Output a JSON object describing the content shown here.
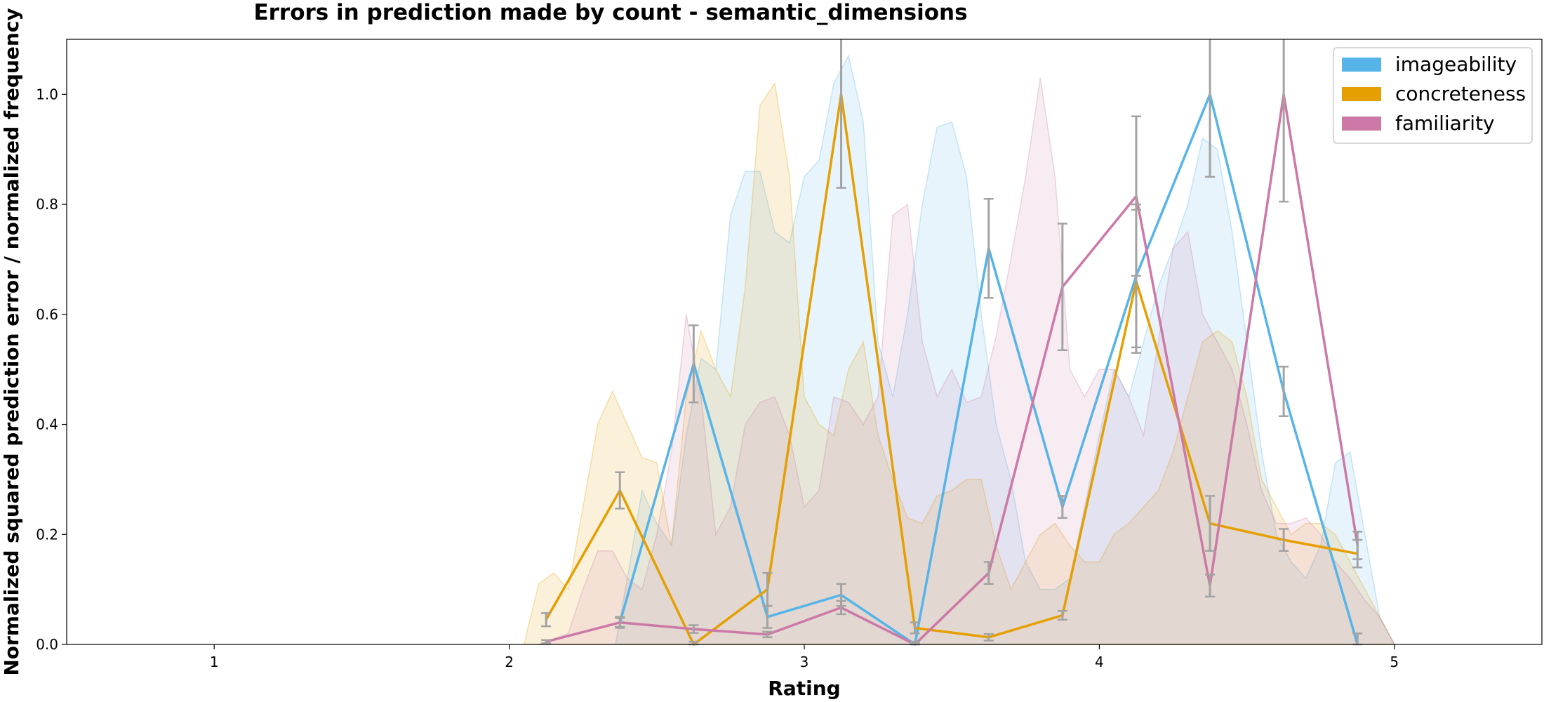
{
  "chart_data": {
    "type": "line",
    "title": "Errors in prediction made by count - semantic_dimensions",
    "xlabel": "Rating",
    "ylabel": "Normalized squared prediction error / normalized frequency",
    "xlim": [
      0.5,
      5.5
    ],
    "ylim": [
      0,
      1.1
    ],
    "xticks": [
      "1",
      "2",
      "3",
      "4",
      "5"
    ],
    "xtick_values": [
      1,
      2,
      3,
      4,
      5
    ],
    "yticks": [
      "0.0",
      "0.2",
      "0.4",
      "0.6",
      "0.8",
      "1.0"
    ],
    "ytick_values": [
      0,
      0.2,
      0.4,
      0.6,
      0.8,
      1.0
    ],
    "grid": false,
    "legend_position": "top-right",
    "series": [
      {
        "name": "imageability",
        "color": "#56B4E9",
        "line": {
          "x": [
            2.375,
            2.625,
            2.875,
            3.125,
            3.375,
            3.625,
            3.875,
            4.125,
            4.375,
            4.625,
            4.875
          ],
          "y": [
            0.04,
            0.51,
            0.05,
            0.09,
            0.0,
            0.72,
            0.25,
            0.67,
            1.0,
            0.46,
            0.0
          ],
          "err": [
            0.01,
            0.07,
            0.02,
            0.02,
            0.005,
            0.09,
            0.02,
            0.13,
            0.15,
            0.045,
            0.02
          ]
        },
        "distribution": {
          "x": [
            2.36,
            2.4,
            2.45,
            2.5,
            2.55,
            2.6,
            2.65,
            2.7,
            2.75,
            2.8,
            2.85,
            2.9,
            2.95,
            3.0,
            3.05,
            3.1,
            3.15,
            3.2,
            3.25,
            3.3,
            3.35,
            3.4,
            3.45,
            3.5,
            3.55,
            3.6,
            3.65,
            3.7,
            3.75,
            3.8,
            3.85,
            3.9,
            3.95,
            4.0,
            4.05,
            4.1,
            4.15,
            4.2,
            4.25,
            4.3,
            4.35,
            4.4,
            4.45,
            4.5,
            4.55,
            4.6,
            4.65,
            4.7,
            4.75,
            4.8,
            4.85,
            4.9,
            4.95,
            5.0
          ],
          "y": [
            0.0,
            0.12,
            0.28,
            0.22,
            0.18,
            0.38,
            0.52,
            0.5,
            0.78,
            0.86,
            0.86,
            0.75,
            0.73,
            0.85,
            0.88,
            1.02,
            1.07,
            0.95,
            0.55,
            0.45,
            0.6,
            0.8,
            0.94,
            0.95,
            0.85,
            0.6,
            0.4,
            0.3,
            0.15,
            0.1,
            0.1,
            0.12,
            0.25,
            0.38,
            0.5,
            0.45,
            0.55,
            0.65,
            0.72,
            0.8,
            0.92,
            0.9,
            0.75,
            0.55,
            0.35,
            0.2,
            0.15,
            0.12,
            0.18,
            0.33,
            0.35,
            0.2,
            0.05,
            0.0
          ]
        }
      },
      {
        "name": "concreteness",
        "color": "#E69F00",
        "line": {
          "x": [
            2.125,
            2.375,
            2.625,
            2.875,
            3.125,
            3.375,
            3.625,
            3.875,
            4.125,
            4.375,
            4.625,
            4.875
          ],
          "y": [
            0.045,
            0.28,
            0.0,
            0.1,
            1.0,
            0.03,
            0.013,
            0.053,
            0.66,
            0.22,
            0.19,
            0.165
          ],
          "err": [
            0.012,
            0.033,
            0.005,
            0.03,
            0.17,
            0.01,
            0.006,
            0.008,
            0.13,
            0.05,
            0.02,
            0.025
          ]
        },
        "distribution": {
          "x": [
            2.05,
            2.1,
            2.15,
            2.2,
            2.25,
            2.3,
            2.35,
            2.4,
            2.45,
            2.5,
            2.55,
            2.6,
            2.65,
            2.7,
            2.75,
            2.8,
            2.85,
            2.9,
            2.95,
            3.0,
            3.05,
            3.1,
            3.15,
            3.2,
            3.25,
            3.3,
            3.35,
            3.4,
            3.45,
            3.5,
            3.55,
            3.6,
            3.65,
            3.7,
            3.75,
            3.8,
            3.85,
            3.9,
            3.95,
            4.0,
            4.05,
            4.1,
            4.15,
            4.2,
            4.25,
            4.3,
            4.35,
            4.4,
            4.45,
            4.5,
            4.55,
            4.6,
            4.65,
            4.7,
            4.75,
            4.8,
            4.85,
            4.9,
            4.95,
            5.0
          ],
          "y": [
            0.0,
            0.11,
            0.13,
            0.1,
            0.25,
            0.4,
            0.46,
            0.4,
            0.34,
            0.33,
            0.18,
            0.45,
            0.57,
            0.5,
            0.45,
            0.65,
            0.98,
            1.02,
            0.85,
            0.45,
            0.4,
            0.38,
            0.5,
            0.55,
            0.38,
            0.3,
            0.23,
            0.22,
            0.27,
            0.28,
            0.3,
            0.3,
            0.18,
            0.1,
            0.15,
            0.2,
            0.22,
            0.18,
            0.15,
            0.15,
            0.2,
            0.22,
            0.25,
            0.28,
            0.35,
            0.45,
            0.55,
            0.57,
            0.55,
            0.45,
            0.3,
            0.25,
            0.2,
            0.22,
            0.22,
            0.2,
            0.15,
            0.1,
            0.05,
            0.0
          ]
        }
      },
      {
        "name": "familiarity",
        "color": "#CC79A7",
        "line": {
          "x": [
            2.125,
            2.375,
            2.625,
            2.875,
            3.125,
            3.375,
            3.625,
            3.875,
            4.125,
            4.375,
            4.625,
            4.875
          ],
          "y": [
            0.005,
            0.04,
            0.028,
            0.018,
            0.067,
            0.0,
            0.13,
            0.65,
            0.815,
            0.107,
            1.0,
            0.18
          ],
          "err": [
            0.003,
            0.008,
            0.007,
            0.005,
            0.012,
            0.003,
            0.02,
            0.115,
            0.145,
            0.02,
            0.195,
            0.025
          ]
        },
        "distribution": {
          "x": [
            2.1,
            2.15,
            2.2,
            2.25,
            2.3,
            2.35,
            2.4,
            2.45,
            2.5,
            2.55,
            2.6,
            2.65,
            2.7,
            2.75,
            2.8,
            2.85,
            2.9,
            2.95,
            3.0,
            3.05,
            3.1,
            3.15,
            3.2,
            3.25,
            3.3,
            3.35,
            3.4,
            3.45,
            3.5,
            3.55,
            3.6,
            3.65,
            3.7,
            3.75,
            3.8,
            3.85,
            3.9,
            3.95,
            4.0,
            4.05,
            4.1,
            4.15,
            4.2,
            4.25,
            4.3,
            4.35,
            4.4,
            4.45,
            4.5,
            4.55,
            4.6,
            4.65,
            4.7,
            4.75,
            4.8,
            4.85,
            4.9,
            4.95,
            5.0
          ],
          "y": [
            0.0,
            0.01,
            0.02,
            0.1,
            0.17,
            0.17,
            0.12,
            0.1,
            0.2,
            0.35,
            0.6,
            0.45,
            0.2,
            0.25,
            0.4,
            0.44,
            0.45,
            0.38,
            0.25,
            0.28,
            0.45,
            0.44,
            0.4,
            0.45,
            0.78,
            0.8,
            0.55,
            0.45,
            0.5,
            0.44,
            0.45,
            0.56,
            0.7,
            0.85,
            1.03,
            0.85,
            0.5,
            0.45,
            0.5,
            0.5,
            0.45,
            0.38,
            0.55,
            0.72,
            0.75,
            0.6,
            0.55,
            0.5,
            0.4,
            0.28,
            0.22,
            0.22,
            0.23,
            0.2,
            0.15,
            0.12,
            0.08,
            0.05,
            0.0
          ]
        }
      }
    ]
  }
}
